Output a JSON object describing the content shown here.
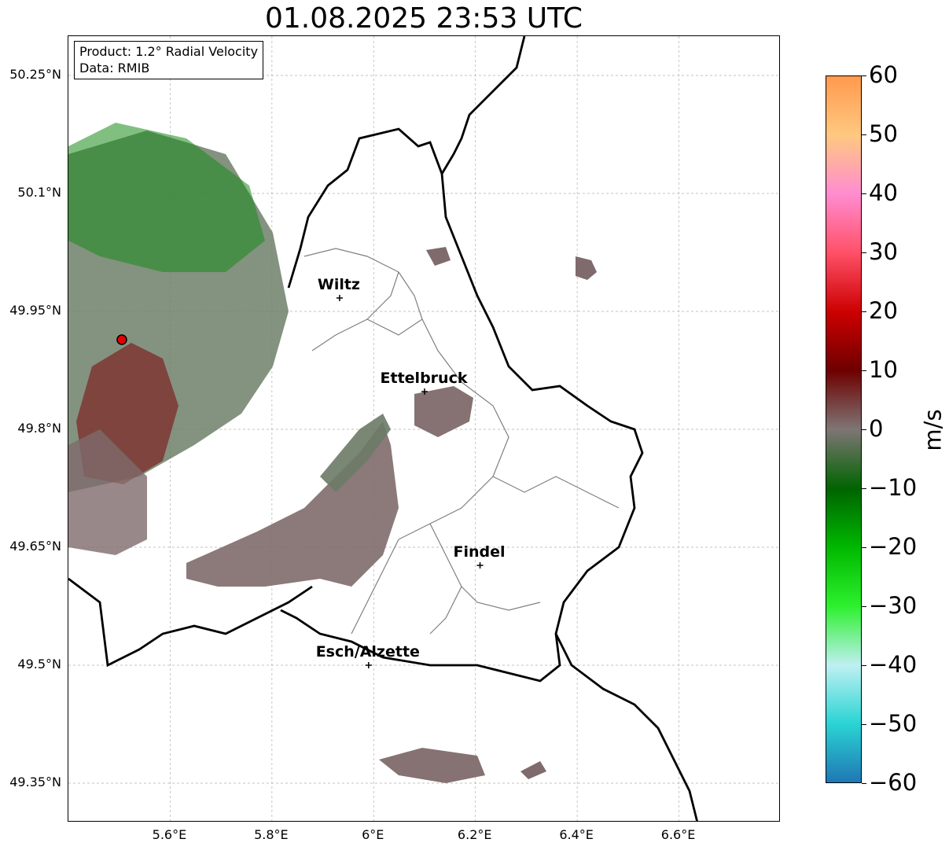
{
  "title": "01.08.2025 23:53 UTC",
  "info": {
    "product": "Product: 1.2° Radial Velocity",
    "source": "Data: RMIB"
  },
  "lat_labels": [
    "50.25°N",
    "50.1°N",
    "49.95°N",
    "49.8°N",
    "49.65°N",
    "49.5°N",
    "49.35°N"
  ],
  "lat_values": [
    50.25,
    50.1,
    49.95,
    49.8,
    49.65,
    49.5,
    49.35
  ],
  "lon_labels": [
    "5.6°E",
    "5.8°E",
    "6°E",
    "6.2°E",
    "6.4°E",
    "6.6°E"
  ],
  "lon_values": [
    5.6,
    5.8,
    6.0,
    6.2,
    6.4,
    6.6
  ],
  "map_extent": {
    "lon_min": 5.4,
    "lon_max": 6.8,
    "lat_min": 49.3,
    "lat_max": 50.3
  },
  "radar_site": {
    "lon": 5.505,
    "lat": 49.914
  },
  "cities": [
    {
      "name": "Wiltz",
      "lon": 5.933,
      "lat": 49.967
    },
    {
      "name": "Ettelbruck",
      "lon": 6.1,
      "lat": 49.848
    },
    {
      "name": "Findel",
      "lon": 6.209,
      "lat": 49.627
    },
    {
      "name": "Esch/Alzette",
      "lon": 5.99,
      "lat": 49.5
    }
  ],
  "colorbar": {
    "unit": "m/s",
    "min": -60,
    "max": 60,
    "ticks": [
      "60",
      "50",
      "40",
      "30",
      "20",
      "10",
      "0",
      "−10",
      "−20",
      "−30",
      "−40",
      "−50",
      "−60"
    ],
    "colors": {
      "v_neg60": "#1f77b4",
      "v_neg50": "#2ad4d4",
      "v_neg40": "#bff0f2",
      "v_neg30": "#2df02d",
      "v_neg20": "#00b800",
      "v_neg10": "#006400",
      "v_0": "#7f7575",
      "v_10": "#6e0000",
      "v_20": "#cc0000",
      "v_30": "#ff5068",
      "v_40": "#ff8cd0",
      "v_50": "#ffc880",
      "v_60": "#ff9a4e"
    }
  }
}
